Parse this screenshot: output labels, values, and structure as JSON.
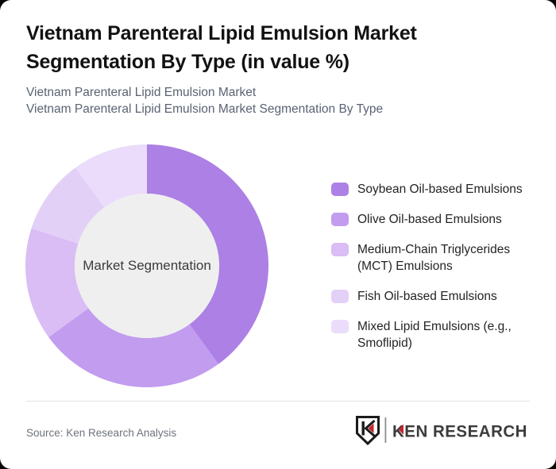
{
  "window": {
    "background_color": "#060606",
    "card_color": "#ffffff"
  },
  "header": {
    "title": "Vietnam Parenteral Lipid Emulsion Market Segmentation By Type (in value %)",
    "subtitle_lines": [
      "Vietnam Parenteral Lipid Emulsion Market",
      "Vietnam Parenteral Lipid Emulsion Market Segmentation By Type"
    ]
  },
  "chart_data": {
    "type": "pie",
    "variant": "donut",
    "center_label": "Market Segmentation",
    "unit": "%",
    "categories": [
      "Soybean Oil-based Emulsions",
      "Olive Oil-based Emulsions",
      "Medium-Chain Triglycerides (MCT) Emulsions",
      "Fish Oil-based Emulsions",
      "Mixed Lipid Emulsions (e.g., Smoflipid)"
    ],
    "values": [
      40,
      25,
      15,
      10,
      10
    ],
    "values_estimated_from_arc_angles": true,
    "colors": [
      "#ad80e5",
      "#c29cef",
      "#d9bdf4",
      "#e3d0f7",
      "#eadcfa"
    ],
    "center_fill": "#efefef",
    "start_angle_deg": 0,
    "direction": "clockwise",
    "legend_position": "right",
    "data_labels_shown": false
  },
  "footer": {
    "source": "Source: Ken Research Analysis",
    "logo_text": "KEN RESEARCH",
    "logo_monogram": "K",
    "logo_accent_color": "#c1272d"
  }
}
